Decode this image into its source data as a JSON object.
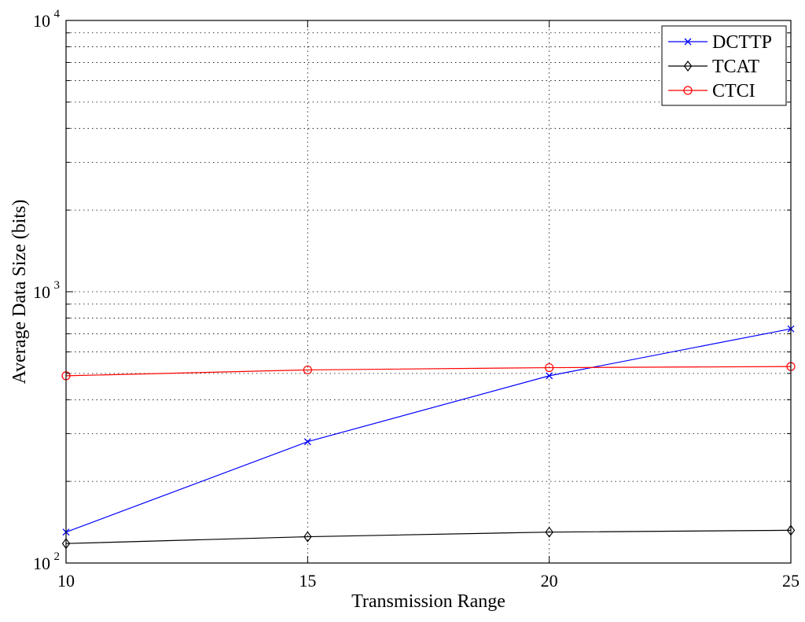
{
  "chart_data": {
    "type": "line",
    "xlabel": "Transmission Range",
    "ylabel": "Average Data Size (bits)",
    "yscale": "log",
    "xlim": [
      10,
      25
    ],
    "ylim": [
      100,
      10000
    ],
    "x_ticks": [
      10,
      15,
      20,
      25
    ],
    "y_ticks": [
      {
        "base": "10",
        "exp": "2",
        "value": 100
      },
      {
        "base": "10",
        "exp": "3",
        "value": 1000
      },
      {
        "base": "10",
        "exp": "4",
        "value": 10000
      }
    ],
    "grid": true,
    "legend_position": "top-right",
    "x": [
      10,
      15,
      20,
      25
    ],
    "series": [
      {
        "name": "DCTTP",
        "color": "#0000ff",
        "marker": "x",
        "values": [
          130,
          280,
          490,
          730
        ]
      },
      {
        "name": "TCAT",
        "color": "#000000",
        "marker": "diamond",
        "values": [
          118,
          125,
          130,
          132
        ]
      },
      {
        "name": "CTCI",
        "color": "#ff0000",
        "marker": "circle",
        "values": [
          490,
          515,
          525,
          530
        ]
      }
    ]
  }
}
